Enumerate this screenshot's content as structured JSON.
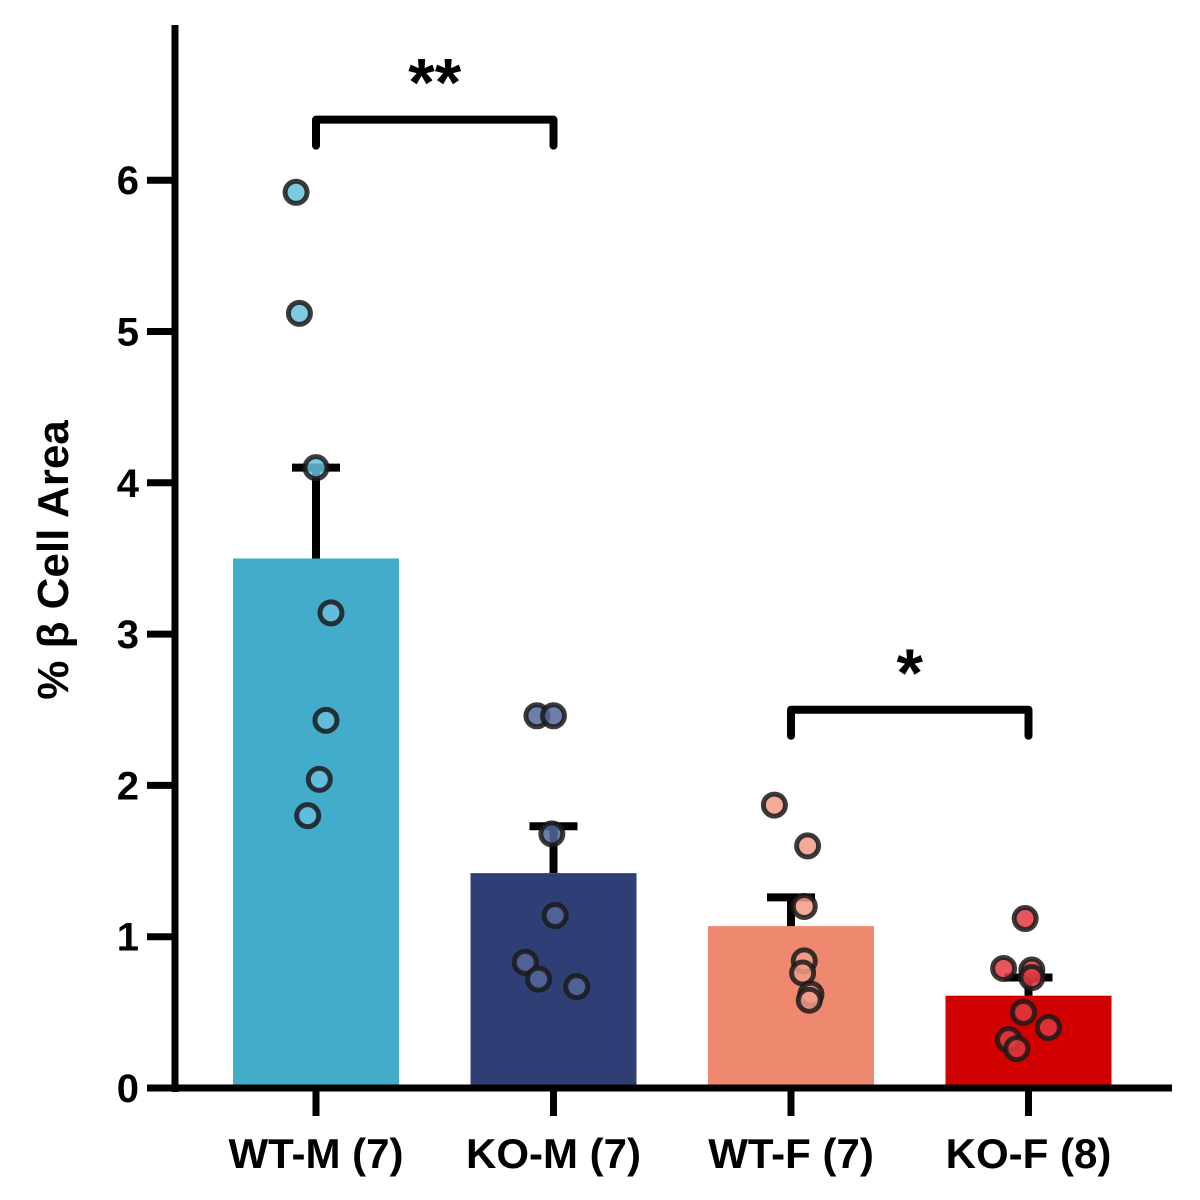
{
  "chart_data": {
    "type": "bar",
    "title": "",
    "xlabel": "",
    "ylabel": "% β Cell Area",
    "ylim": [
      0,
      7
    ],
    "yticks": [
      0,
      1,
      2,
      3,
      4,
      5,
      6
    ],
    "grid": false,
    "legend": null,
    "categories": [
      "WT-M (7)",
      "KO-M (7)",
      "WT-F (7)",
      "KO-F (8)"
    ],
    "values": [
      3.5,
      1.42,
      1.07,
      0.61
    ],
    "error_upper": [
      4.1,
      1.73,
      1.26,
      0.73
    ],
    "colors": [
      "#42acca",
      "#2f3f75",
      "#ee886e",
      "#d10000"
    ],
    "point_colors": [
      "#66c0dc",
      "#55679c",
      "#f39b86",
      "#e03a40"
    ],
    "points": [
      [
        5.92,
        5.12,
        4.1,
        3.14,
        2.43,
        2.04,
        1.8
      ],
      [
        2.46,
        2.46,
        1.68,
        1.14,
        0.83,
        0.72,
        0.67
      ],
      [
        1.87,
        1.6,
        1.2,
        0.84,
        0.76,
        0.62,
        0.58
      ],
      [
        1.12,
        0.79,
        0.78,
        0.73,
        0.5,
        0.4,
        0.32,
        0.26
      ]
    ],
    "point_jitter": [
      [
        -0.12,
        -0.1,
        0.0,
        0.09,
        0.06,
        0.02,
        -0.05
      ],
      [
        -0.1,
        0.0,
        -0.01,
        0.01,
        -0.17,
        -0.09,
        0.14
      ],
      [
        -0.1,
        0.1,
        0.08,
        0.08,
        0.07,
        0.12,
        0.11
      ],
      [
        -0.02,
        -0.15,
        0.02,
        0.02,
        -0.03,
        0.12,
        -0.12,
        -0.07
      ]
    ],
    "significance": [
      {
        "from": 0,
        "to": 1,
        "level": 6.4,
        "label": "**"
      },
      {
        "from": 2,
        "to": 3,
        "level": 2.5,
        "label": "*"
      }
    ]
  }
}
